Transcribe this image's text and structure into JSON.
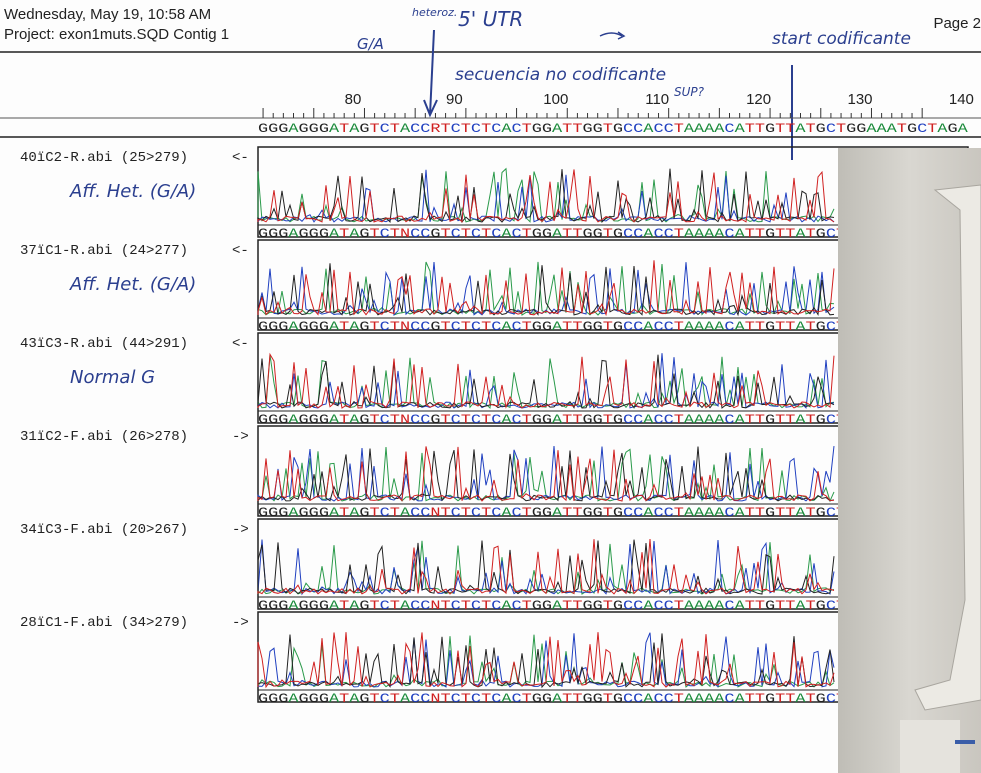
{
  "header": {
    "date": "Wednesday, May 19, 10:58 AM",
    "project": "Project: exon1muts.SQD Contig 1",
    "page": "Page 2"
  },
  "annotations": {
    "heteroz": "heteroz.",
    "utr": "5' UTR",
    "ga": "G/A",
    "start": "start codificante",
    "noncoding": "secuencia no codificante",
    "sup": "SUP?"
  },
  "ruler": {
    "labels": [
      "80",
      "90",
      "100",
      "110",
      "120",
      "130",
      "140"
    ]
  },
  "consensus": "GGGAGGGATAGTCTACCRTCTCTCACTGGATTGGTGCCACCTAAAACATTGTTATGCTGGAAATGCTAGA",
  "tracks": [
    {
      "name": "40ïC2-R.abi (25>279)",
      "direction": "<-",
      "note": "Aff. Het. (G/A)",
      "sequence": "GGGAGGGATAGTCTNCCGTCTCTCACTGGATTGGTGCCACCTAAAACATTGTTATGCT"
    },
    {
      "name": "37ïC1-R.abi (24>277)",
      "direction": "<-",
      "note": "Aff. Het. (G/A)",
      "sequence": "GGGAGGGATAGTCTNCCGTCTCTCACTGGATTGGTGCCACCTAAAACATTGTTATGCT"
    },
    {
      "name": "43ïC3-R.abi (44>291)",
      "direction": "<-",
      "note": "Normal G",
      "sequence": "GGGAGGGATAGTCTNCCGTCTCTCACTGGATTGGTGCCACCTAAAACATTGTTATGCT"
    },
    {
      "name": "31ïC2-F.abi (26>278)",
      "direction": "->",
      "note": null,
      "sequence": "GGGAGGGATAGTCTACCNTCTCTCACTGGATTGGTGCCACCTAAAACATTGTTATGCT"
    },
    {
      "name": "34ïC3-F.abi (20>267)",
      "direction": "->",
      "note": null,
      "sequence": "GGGAGGGATAGTCTACCNTCTCTCACTGGATTGGTGCCACCTAAAACATTGTTATGCT"
    },
    {
      "name": "28ïC1-F.abi (34>279)",
      "direction": "->",
      "note": null,
      "sequence": "GGGAGGGATAGTCTACCNTCTCTCACTGGATTGGTGCCACCTAAAACATTGTTATGCT"
    }
  ]
}
